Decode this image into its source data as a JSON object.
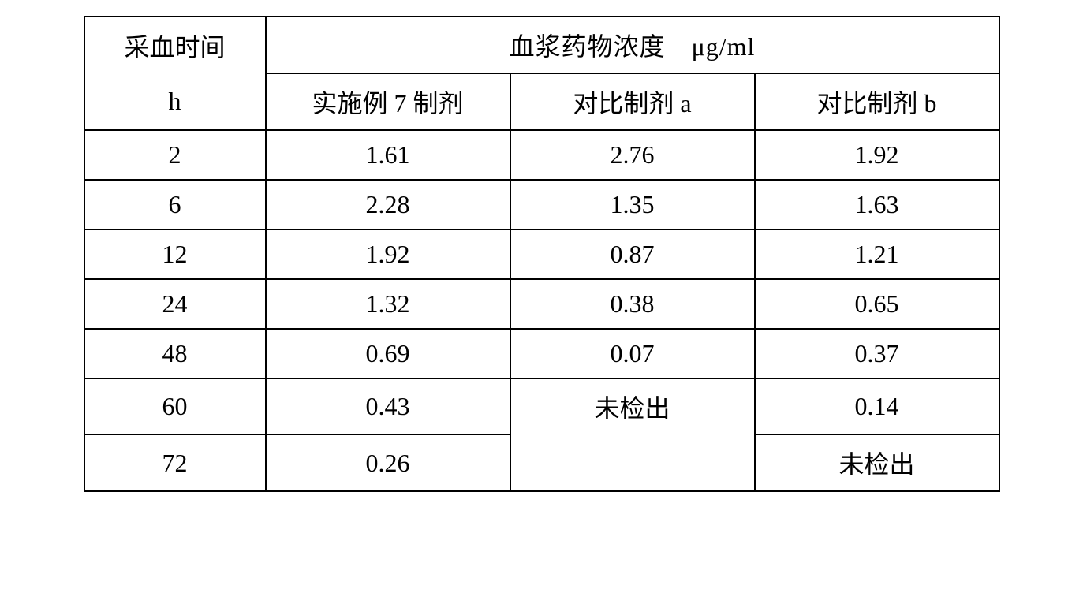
{
  "table": {
    "header": {
      "time_label_line1": "采血时间",
      "time_label_line2": "h",
      "concentration_header": "血浆药物浓度　μg/ml",
      "col1_header": "实施例 7 制剂",
      "col2_header": "对比制剂 a",
      "col3_header": "对比制剂 b"
    },
    "rows": [
      {
        "time": "2",
        "col1": "1.61",
        "col2": "2.76",
        "col3": "1.92"
      },
      {
        "time": "6",
        "col1": "2.28",
        "col2": "1.35",
        "col3": "1.63"
      },
      {
        "time": "12",
        "col1": "1.92",
        "col2": "0.87",
        "col3": "1.21"
      },
      {
        "time": "24",
        "col1": "1.32",
        "col2": "0.38",
        "col3": "0.65"
      },
      {
        "time": "48",
        "col1": "0.69",
        "col2": "0.07",
        "col3": "0.37"
      },
      {
        "time": "60",
        "col1": "0.43",
        "col2": "未检出",
        "col3": "0.14"
      },
      {
        "time": "72",
        "col1": "0.26",
        "col2": "",
        "col3": "未检出"
      }
    ],
    "styling": {
      "border_color": "#000000",
      "border_width": 2,
      "background_color": "#ffffff",
      "text_color": "#000000",
      "font_size": 32,
      "font_family": "SimSun",
      "col_time_width": 230,
      "col_data_width": 310,
      "cell_padding_vertical": 12,
      "cell_padding_horizontal": 8
    }
  }
}
